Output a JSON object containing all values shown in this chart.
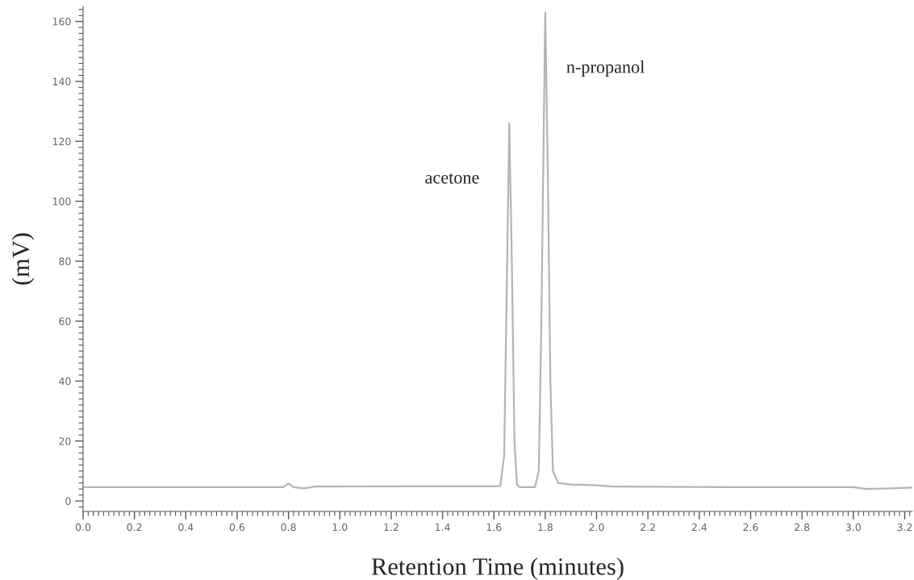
{
  "chart_data": {
    "type": "line",
    "xlabel": "Retention Time (minutes)",
    "ylabel": "(mV)",
    "xlim": [
      0,
      3.23
    ],
    "ylim": [
      -3.5,
      165
    ],
    "xticks": [
      {
        "value": 0,
        "label": "0.0"
      },
      {
        "value": 0.2,
        "label": "0.2"
      },
      {
        "value": 0.4,
        "label": "0.4"
      },
      {
        "value": 0.6,
        "label": "0.6"
      },
      {
        "value": 0.8,
        "label": "0.8"
      },
      {
        "value": 1.0,
        "label": "1.0"
      },
      {
        "value": 1.2,
        "label": "1.2"
      },
      {
        "value": 1.4,
        "label": "1.4"
      },
      {
        "value": 1.6,
        "label": "1.6"
      },
      {
        "value": 1.8,
        "label": "1.8"
      },
      {
        "value": 2.0,
        "label": "2.0"
      },
      {
        "value": 2.2,
        "label": "2.2"
      },
      {
        "value": 2.4,
        "label": "2.4"
      },
      {
        "value": 2.6,
        "label": "2.6"
      },
      {
        "value": 2.8,
        "label": "2.8"
      },
      {
        "value": 3.0,
        "label": "3.0"
      },
      {
        "value": 3.2,
        "label": "3.2"
      }
    ],
    "yticks": [
      0,
      20,
      40,
      60,
      80,
      100,
      120,
      140,
      160
    ],
    "grid": false,
    "legend": false,
    "marker": "none",
    "line_style": "solid",
    "series": [
      {
        "color": "#b4b4b4",
        "x": [
          0,
          0.78,
          0.8,
          0.82,
          0.86,
          0.89,
          0.9,
          1.6,
          1.625,
          1.64,
          1.65,
          1.66,
          1.67,
          1.68,
          1.69,
          1.7,
          1.76,
          1.775,
          1.785,
          1.795,
          1.8,
          1.81,
          1.82,
          1.83,
          1.85,
          1.9,
          2.0,
          2.06,
          2.5,
          3.0,
          3.05,
          3.15,
          3.23
        ],
        "values": [
          4.6,
          4.6,
          5.8,
          4.6,
          4.2,
          4.6,
          4.8,
          4.9,
          5.0,
          15,
          70,
          126,
          80,
          20,
          5.5,
          4.6,
          4.6,
          10,
          60,
          130,
          163,
          110,
          40,
          10,
          6,
          5.5,
          5.2,
          4.8,
          4.6,
          4.6,
          4.0,
          4.2,
          4.5
        ]
      }
    ],
    "annotations": [
      "acetone",
      "n-propanol"
    ]
  }
}
